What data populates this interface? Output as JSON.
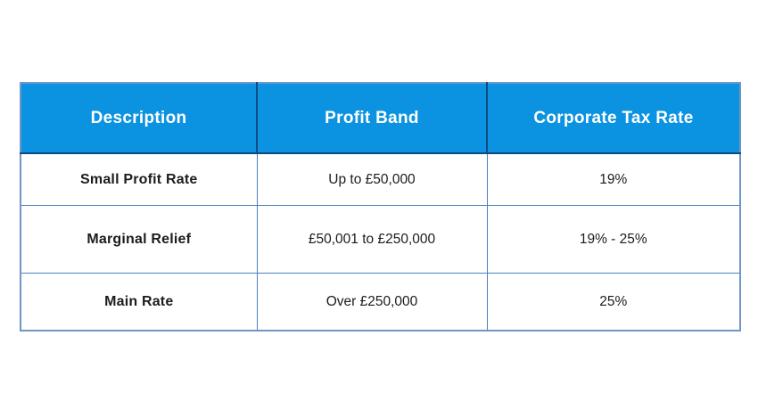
{
  "chart_data": {
    "type": "table",
    "columns": [
      "Description",
      "Profit Band",
      "Corporate Tax Rate"
    ],
    "rows": [
      [
        "Small Profit Rate",
        "Up to £50,000",
        "19%"
      ],
      [
        "Marginal Relief",
        "£50,001 to £250,000",
        "19% - 25%"
      ],
      [
        "Main Rate",
        "Over £250,000",
        "25%"
      ]
    ]
  },
  "colors": {
    "header_bg": "#0b92e0",
    "header_text": "#ffffff",
    "body_bg": "#ffffff",
    "body_text": "#1c1c1c",
    "border_outer": "#6e96c6",
    "border_inner": "#4a7fc1",
    "border_header": "#0f4a80"
  }
}
